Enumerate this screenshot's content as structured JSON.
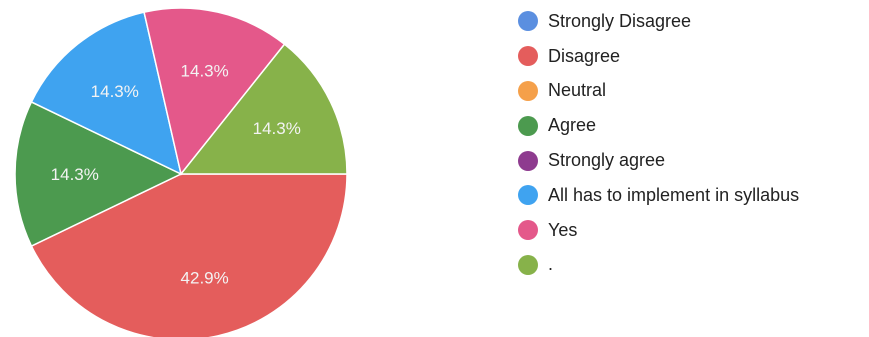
{
  "chart_data": {
    "type": "pie",
    "title": "",
    "legend_position": "right",
    "slice_label_color": "#f3f3f3",
    "slices": [
      {
        "label": "Strongly Disagree",
        "value": 0,
        "display": "",
        "color": "#5b8fe0"
      },
      {
        "label": "Disagree",
        "value": 42.9,
        "display": "42.9%",
        "color": "#e45d5c"
      },
      {
        "label": "Neutral",
        "value": 0,
        "display": "",
        "color": "#f5a04a"
      },
      {
        "label": "Agree",
        "value": 14.3,
        "display": "14.3%",
        "color": "#4c9a4f"
      },
      {
        "label": "Strongly agree",
        "value": 0,
        "display": "",
        "color": "#8e3b8f"
      },
      {
        "label": "All has to implement in syllabus",
        "value": 14.3,
        "display": "14.3%",
        "color": "#3fa3f0"
      },
      {
        "label": "Yes",
        "value": 14.3,
        "display": "14.3%",
        "color": "#e4588a"
      },
      {
        "label": ".",
        "value": 14.3,
        "display": "14.3%",
        "color": "#87b24a"
      }
    ]
  }
}
